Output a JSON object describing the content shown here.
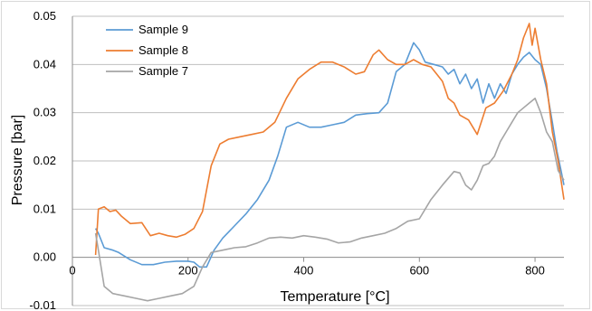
{
  "chart_data": {
    "type": "line",
    "title": "",
    "xlabel": "Temperature [°C]",
    "ylabel": "Pressure [bar]",
    "xlim": [
      0,
      850
    ],
    "ylim": [
      -0.01,
      0.05
    ],
    "x_ticks": [
      0,
      200,
      400,
      600,
      800
    ],
    "x_tick_labels": [
      "0",
      "200",
      "400",
      "600",
      "800"
    ],
    "y_ticks": [
      -0.01,
      0.0,
      0.01,
      0.02,
      0.03,
      0.04,
      0.05
    ],
    "y_tick_labels": [
      "-0.01",
      "0.00",
      "0.01",
      "0.02",
      "0.03",
      "0.04",
      "0.05"
    ],
    "grid": "horizontal",
    "legend_position": "top-left",
    "series": [
      {
        "name": "Sample 9",
        "color": "#5b9bd5",
        "points": [
          [
            40,
            0.006
          ],
          [
            45,
            0.005
          ],
          [
            55,
            0.002
          ],
          [
            70,
            0.0015
          ],
          [
            80,
            0.001
          ],
          [
            100,
            -0.0005
          ],
          [
            120,
            -0.0015
          ],
          [
            140,
            -0.0015
          ],
          [
            160,
            -0.001
          ],
          [
            180,
            -0.0008
          ],
          [
            200,
            -0.0008
          ],
          [
            210,
            -0.001
          ],
          [
            220,
            -0.002
          ],
          [
            232,
            -0.002
          ],
          [
            245,
            0.0015
          ],
          [
            260,
            0.004
          ],
          [
            280,
            0.0065
          ],
          [
            300,
            0.009
          ],
          [
            320,
            0.012
          ],
          [
            340,
            0.016
          ],
          [
            355,
            0.021
          ],
          [
            370,
            0.027
          ],
          [
            390,
            0.028
          ],
          [
            410,
            0.027
          ],
          [
            430,
            0.027
          ],
          [
            450,
            0.0275
          ],
          [
            470,
            0.028
          ],
          [
            490,
            0.0295
          ],
          [
            510,
            0.0298
          ],
          [
            530,
            0.03
          ],
          [
            545,
            0.032
          ],
          [
            560,
            0.0385
          ],
          [
            575,
            0.04
          ],
          [
            590,
            0.0445
          ],
          [
            600,
            0.043
          ],
          [
            610,
            0.0405
          ],
          [
            625,
            0.04
          ],
          [
            640,
            0.0395
          ],
          [
            650,
            0.038
          ],
          [
            660,
            0.039
          ],
          [
            670,
            0.036
          ],
          [
            680,
            0.038
          ],
          [
            690,
            0.035
          ],
          [
            700,
            0.037
          ],
          [
            710,
            0.032
          ],
          [
            720,
            0.036
          ],
          [
            730,
            0.033
          ],
          [
            740,
            0.036
          ],
          [
            750,
            0.034
          ],
          [
            760,
            0.038
          ],
          [
            770,
            0.04
          ],
          [
            780,
            0.0415
          ],
          [
            790,
            0.0425
          ],
          [
            800,
            0.041
          ],
          [
            810,
            0.04
          ],
          [
            820,
            0.035
          ],
          [
            830,
            0.028
          ],
          [
            838,
            0.022
          ],
          [
            845,
            0.018
          ],
          [
            850,
            0.015
          ]
        ]
      },
      {
        "name": "Sample 8",
        "color": "#ed7d31",
        "points": [
          [
            40,
            0.0005
          ],
          [
            45,
            0.01
          ],
          [
            55,
            0.0105
          ],
          [
            65,
            0.0095
          ],
          [
            75,
            0.0098
          ],
          [
            85,
            0.0085
          ],
          [
            100,
            0.007
          ],
          [
            120,
            0.0072
          ],
          [
            135,
            0.0045
          ],
          [
            150,
            0.005
          ],
          [
            165,
            0.0045
          ],
          [
            180,
            0.0042
          ],
          [
            195,
            0.0048
          ],
          [
            210,
            0.006
          ],
          [
            225,
            0.0095
          ],
          [
            240,
            0.019
          ],
          [
            255,
            0.0235
          ],
          [
            270,
            0.0245
          ],
          [
            290,
            0.025
          ],
          [
            310,
            0.0255
          ],
          [
            330,
            0.026
          ],
          [
            350,
            0.028
          ],
          [
            370,
            0.033
          ],
          [
            390,
            0.037
          ],
          [
            410,
            0.039
          ],
          [
            430,
            0.0405
          ],
          [
            450,
            0.0405
          ],
          [
            470,
            0.0395
          ],
          [
            490,
            0.038
          ],
          [
            505,
            0.0385
          ],
          [
            520,
            0.042
          ],
          [
            530,
            0.043
          ],
          [
            545,
            0.041
          ],
          [
            560,
            0.04
          ],
          [
            575,
            0.04
          ],
          [
            590,
            0.041
          ],
          [
            605,
            0.04
          ],
          [
            620,
            0.0395
          ],
          [
            630,
            0.038
          ],
          [
            640,
            0.0365
          ],
          [
            650,
            0.033
          ],
          [
            660,
            0.032
          ],
          [
            670,
            0.0295
          ],
          [
            685,
            0.0285
          ],
          [
            700,
            0.0255
          ],
          [
            715,
            0.031
          ],
          [
            730,
            0.032
          ],
          [
            745,
            0.0345
          ],
          [
            760,
            0.038
          ],
          [
            770,
            0.041
          ],
          [
            780,
            0.0455
          ],
          [
            790,
            0.0485
          ],
          [
            795,
            0.044
          ],
          [
            800,
            0.0475
          ],
          [
            810,
            0.041
          ],
          [
            820,
            0.036
          ],
          [
            830,
            0.026
          ],
          [
            840,
            0.02
          ],
          [
            850,
            0.012
          ]
        ]
      },
      {
        "name": "Sample 7",
        "color": "#a5a5a5",
        "points": [
          [
            40,
            0.005
          ],
          [
            45,
            0.0015
          ],
          [
            55,
            -0.006
          ],
          [
            70,
            -0.0075
          ],
          [
            90,
            -0.008
          ],
          [
            110,
            -0.0085
          ],
          [
            130,
            -0.009
          ],
          [
            150,
            -0.0085
          ],
          [
            170,
            -0.008
          ],
          [
            190,
            -0.0075
          ],
          [
            210,
            -0.006
          ],
          [
            225,
            -0.002
          ],
          [
            240,
            0.001
          ],
          [
            260,
            0.0015
          ],
          [
            280,
            0.002
          ],
          [
            300,
            0.0022
          ],
          [
            320,
            0.003
          ],
          [
            340,
            0.004
          ],
          [
            360,
            0.0042
          ],
          [
            380,
            0.004
          ],
          [
            400,
            0.0045
          ],
          [
            420,
            0.0042
          ],
          [
            440,
            0.0038
          ],
          [
            460,
            0.003
          ],
          [
            480,
            0.0032
          ],
          [
            500,
            0.004
          ],
          [
            520,
            0.0045
          ],
          [
            540,
            0.005
          ],
          [
            560,
            0.006
          ],
          [
            580,
            0.0075
          ],
          [
            600,
            0.008
          ],
          [
            620,
            0.012
          ],
          [
            640,
            0.015
          ],
          [
            660,
            0.0178
          ],
          [
            670,
            0.0175
          ],
          [
            680,
            0.015
          ],
          [
            690,
            0.014
          ],
          [
            700,
            0.016
          ],
          [
            710,
            0.019
          ],
          [
            720,
            0.0195
          ],
          [
            730,
            0.021
          ],
          [
            740,
            0.024
          ],
          [
            750,
            0.026
          ],
          [
            760,
            0.028
          ],
          [
            770,
            0.03
          ],
          [
            780,
            0.031
          ],
          [
            790,
            0.032
          ],
          [
            800,
            0.033
          ],
          [
            810,
            0.03
          ],
          [
            820,
            0.026
          ],
          [
            830,
            0.024
          ],
          [
            840,
            0.018
          ],
          [
            850,
            0.016
          ]
        ]
      }
    ]
  }
}
